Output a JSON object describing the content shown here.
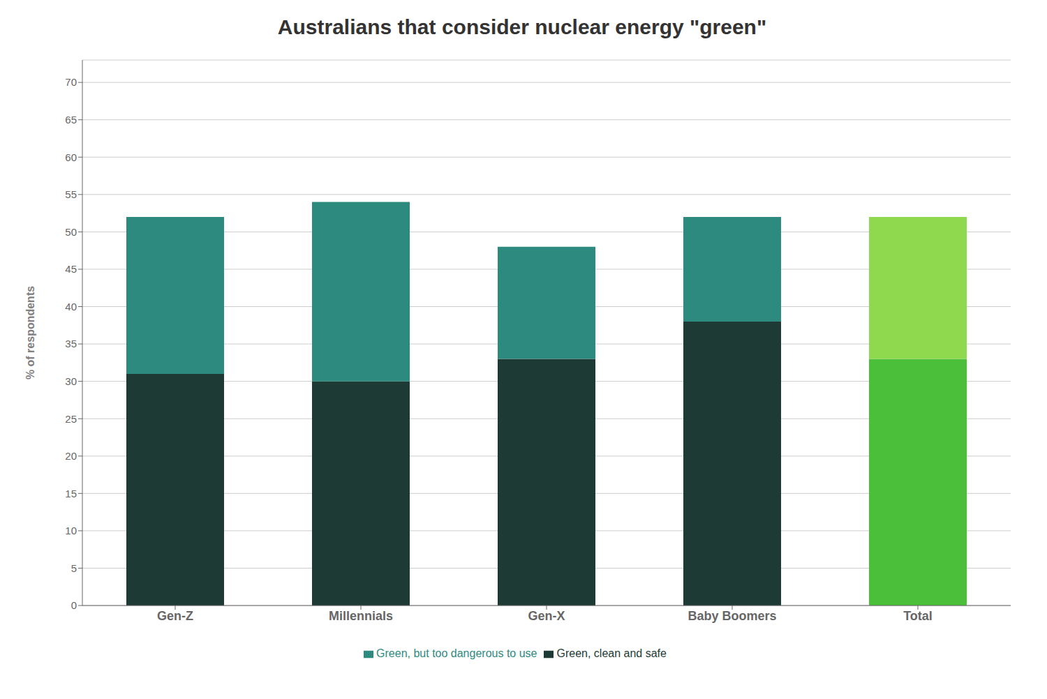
{
  "chart_data": {
    "type": "bar",
    "title": "Australians that consider nuclear energy \"green\"",
    "ylabel": "% of respondents",
    "categories": [
      "Gen-Z",
      "Millennials",
      "Gen-X",
      "Baby Boomers",
      "Total"
    ],
    "series": [
      {
        "name": "Green, clean and safe",
        "values": [
          31,
          30,
          33,
          38,
          33
        ],
        "colors": [
          "#1e3a35",
          "#1e3a35",
          "#1e3a35",
          "#1e3a35",
          "#4bbf3a"
        ]
      },
      {
        "name": "Green, but too dangerous to use",
        "values": [
          21,
          24,
          15,
          14,
          19
        ],
        "colors": [
          "#2d8a7f",
          "#2d8a7f",
          "#2d8a7f",
          "#2d8a7f",
          "#8fd94e"
        ]
      }
    ],
    "stacked": true,
    "ylim": [
      0,
      73
    ],
    "yticks": [
      0,
      5,
      10,
      15,
      20,
      25,
      30,
      35,
      40,
      45,
      50,
      55,
      60,
      65,
      70
    ],
    "grid": true,
    "legend": "bottom"
  }
}
